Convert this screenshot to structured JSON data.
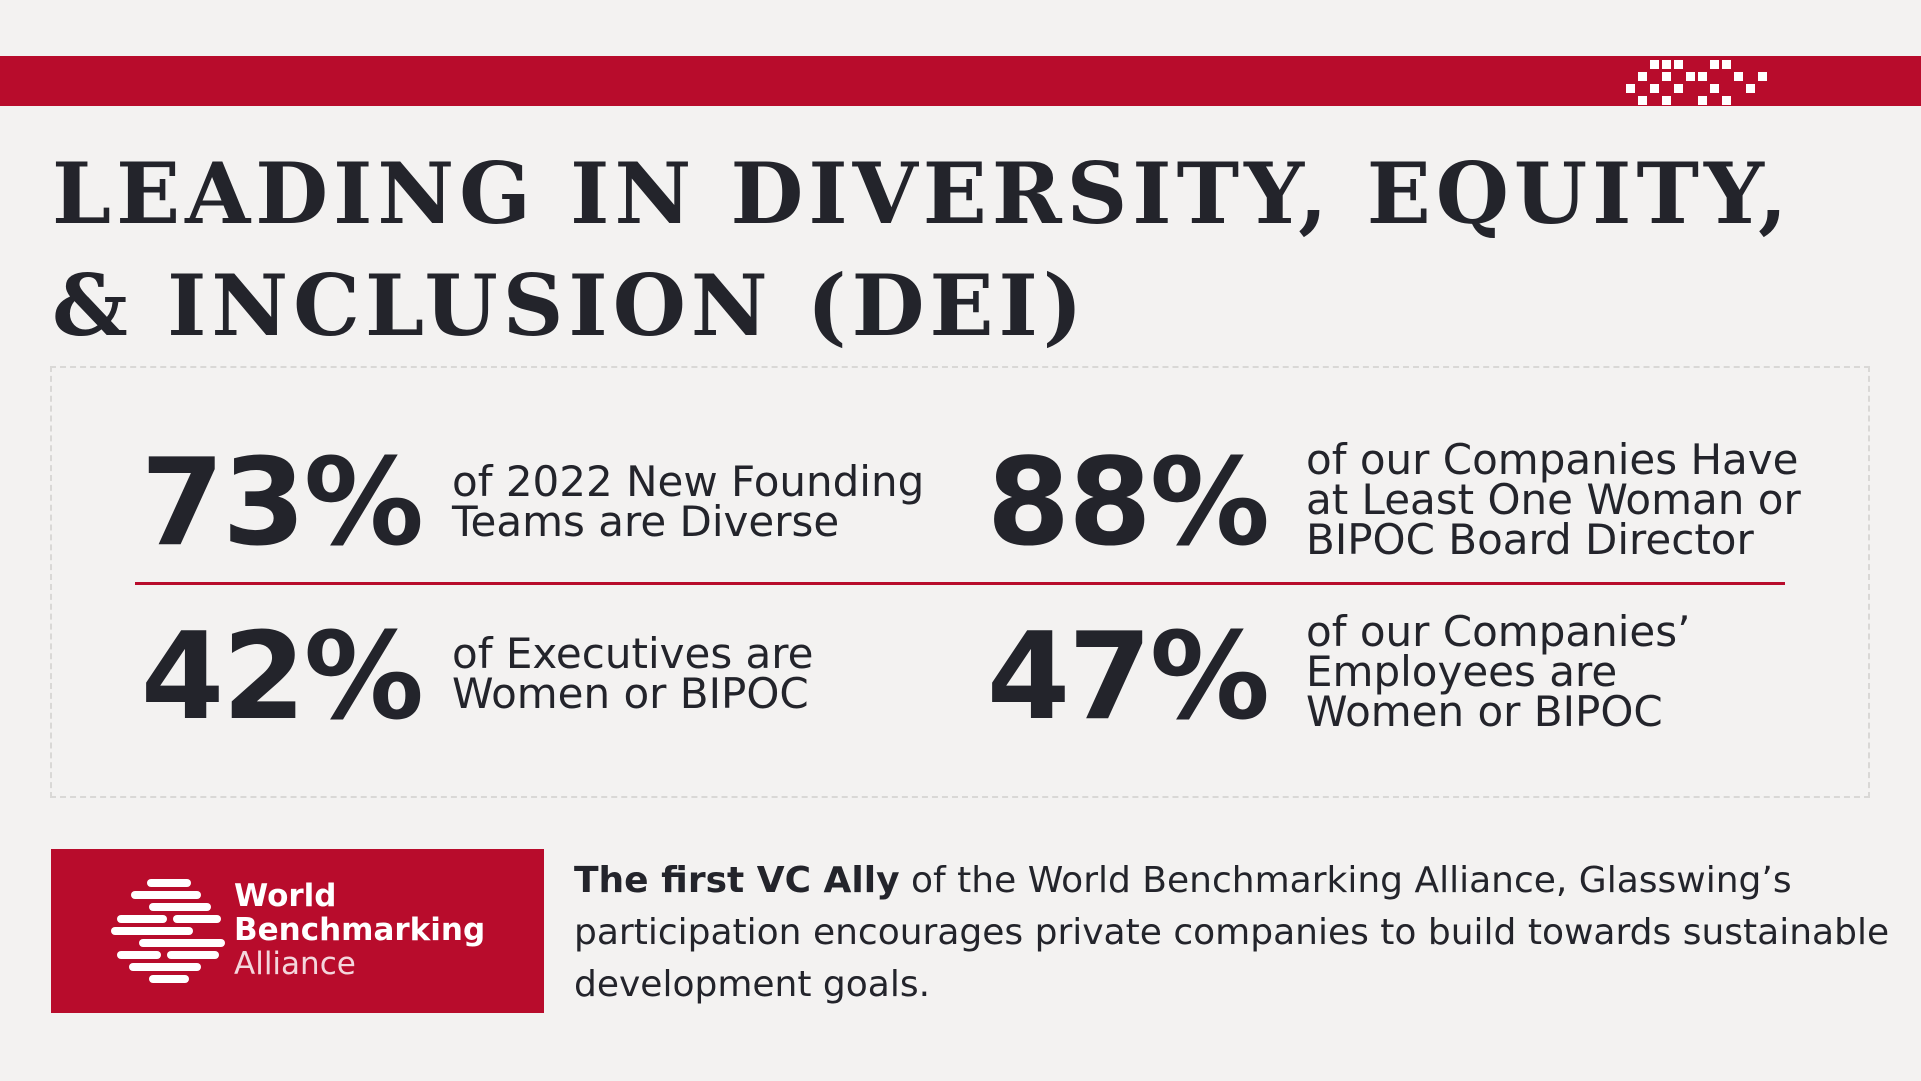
{
  "header": {
    "title_line1": "LEADING IN DIVERSITY, EQUITY,",
    "title_line2": "& INCLUSION (DEI)"
  },
  "stats": [
    {
      "value": "73%",
      "text_lines": [
        "of 2022 New Founding",
        "Teams are Diverse"
      ]
    },
    {
      "value": "88%",
      "text_lines": [
        "of our Companies Have",
        "at Least One Woman or",
        "BIPOC Board Director"
      ]
    },
    {
      "value": "42%",
      "text_lines": [
        "of Executives are",
        "Women or BIPOC"
      ]
    },
    {
      "value": "47%",
      "text_lines": [
        "of our Companies’",
        "Employees are",
        "Women or BIPOC"
      ]
    }
  ],
  "wba": {
    "name_line1": "World",
    "name_line2": "Benchmarking",
    "name_line3": "Alliance"
  },
  "description": {
    "bold": "The first VC Ally",
    "rest": " of the World Benchmarking Alliance, Glasswing’s participation encourages private companies to build towards sustainable development goals."
  },
  "colors": {
    "brand_red": "#b80c2c",
    "text_dark": "#23242b",
    "background": "#f3f2f1"
  },
  "icons": {
    "top_right": "pixel-grid-mark-icon",
    "wba": "striped-globe-logo-icon"
  }
}
